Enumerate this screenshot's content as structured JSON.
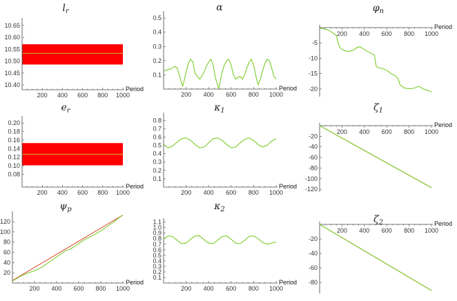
{
  "colors": {
    "series": "#7acc29",
    "band": "#ff0000",
    "bandline": "#c8c030",
    "trend": "#e0442c"
  },
  "chart_data": [
    {
      "type": "band",
      "title_base": "l",
      "title_sub": "r",
      "xlabel": "Period",
      "xlim": [
        0,
        1000
      ],
      "xticks": [
        200,
        400,
        600,
        800,
        1000
      ],
      "ylim": [
        10.38,
        10.67
      ],
      "yticks": [
        10.4,
        10.45,
        10.5,
        10.55,
        10.6,
        10.65
      ],
      "ytick_labels": [
        "10.40",
        "10.45",
        "10.50",
        "10.55",
        "10.60",
        "10.65"
      ],
      "x_axis_at": 10.38,
      "band": {
        "x": [
          0,
          1000
        ],
        "ymin": 10.486,
        "ymax": 10.571,
        "center": 10.533
      }
    },
    {
      "type": "line",
      "title_base": "α",
      "title_sub": "",
      "xlabel": "Period",
      "xlim": [
        0,
        1000
      ],
      "xticks": [
        200,
        400,
        600,
        800,
        1000
      ],
      "ylim": [
        0,
        0.53
      ],
      "yticks": [
        0.1,
        0.2,
        0.3,
        0.4,
        0.5
      ],
      "ytick_labels": [
        "0.1",
        "0.2",
        "0.3",
        "0.4",
        "0.5"
      ],
      "x_axis_at": 0,
      "series": [
        {
          "x": [
            0,
            20,
            40,
            60,
            80,
            100,
            120,
            140,
            160,
            170,
            180,
            200,
            220,
            240,
            260,
            280,
            300,
            320,
            340,
            360,
            380,
            400,
            420,
            440,
            460,
            480,
            490,
            500,
            520,
            540,
            560,
            580,
            600,
            620,
            640,
            660,
            680,
            690,
            700,
            720,
            740,
            760,
            780,
            800,
            820,
            840,
            860,
            880,
            900,
            920,
            940,
            960,
            980,
            1000
          ],
          "y": [
            0.13,
            0.13,
            0.14,
            0.14,
            0.15,
            0.16,
            0.15,
            0.1,
            0.04,
            0.02,
            0.05,
            0.12,
            0.18,
            0.21,
            0.19,
            0.11,
            0.09,
            0.07,
            0.09,
            0.12,
            0.16,
            0.19,
            0.21,
            0.17,
            0.08,
            0.03,
            0.005,
            0.04,
            0.12,
            0.17,
            0.2,
            0.21,
            0.17,
            0.1,
            0.07,
            0.08,
            0.09,
            0.08,
            0.07,
            0.1,
            0.15,
            0.19,
            0.21,
            0.17,
            0.09,
            0.03,
            0.07,
            0.13,
            0.18,
            0.21,
            0.2,
            0.15,
            0.09,
            0.07
          ]
        }
      ]
    },
    {
      "type": "line",
      "title_base": "φ",
      "title_sub": "n",
      "xlabel": "Period",
      "xlim": [
        0,
        1000
      ],
      "xticks": [
        200,
        400,
        600,
        800,
        1000
      ],
      "ylim": [
        -22.5,
        0
      ],
      "yticks": [
        -5,
        -10,
        -15,
        -20
      ],
      "ytick_labels": [
        "-5",
        "-10",
        "-15",
        "-20"
      ],
      "x_axis_at": 0,
      "series": [
        {
          "x": [
            0,
            40,
            80,
            120,
            150,
            165,
            180,
            220,
            260,
            300,
            330,
            360,
            390,
            420,
            460,
            490,
            505,
            520,
            560,
            600,
            640,
            680,
            700,
            720,
            760,
            800,
            840,
            880,
            900,
            920,
            960,
            1000
          ],
          "y": [
            -0.2,
            -0.4,
            -0.8,
            -1.8,
            -2.6,
            -5.0,
            -6.5,
            -7.5,
            -7.8,
            -7.4,
            -6.6,
            -6.2,
            -6.9,
            -7.6,
            -8.4,
            -9.0,
            -12.5,
            -13.0,
            -13.3,
            -13.9,
            -15.0,
            -15.8,
            -16.6,
            -18.7,
            -19.7,
            -19.9,
            -19.8,
            -19.2,
            -19.3,
            -19.9,
            -20.4,
            -20.9
          ]
        }
      ]
    },
    {
      "type": "band",
      "title_base": "e",
      "title_sub": "r",
      "xlabel": "Period",
      "xlim": [
        0,
        1000
      ],
      "xticks": [
        200,
        400,
        600,
        800,
        1000
      ],
      "ylim": [
        0.05,
        0.21
      ],
      "yticks": [
        0.08,
        0.1,
        0.12,
        0.14,
        0.16,
        0.18,
        0.2
      ],
      "ytick_labels": [
        "0.08",
        "0.10",
        "0.12",
        "0.14",
        "0.16",
        "0.18",
        "0.20"
      ],
      "x_axis_at": 0.05,
      "band": {
        "x": [
          0,
          1000
        ],
        "ymin": 0.101,
        "ymax": 0.153,
        "center": 0.127
      }
    },
    {
      "type": "line",
      "title_base": "κ",
      "title_sub": "1",
      "xlabel": "Period",
      "xlim": [
        0,
        1000
      ],
      "xticks": [
        200,
        400,
        600,
        800,
        1000
      ],
      "ylim": [
        0,
        0.86
      ],
      "yticks": [
        0.1,
        0.2,
        0.3,
        0.4,
        0.5,
        0.6,
        0.7,
        0.8
      ],
      "ytick_labels": [
        "0.1",
        "0.2",
        "0.3",
        "0.4",
        "0.5",
        "0.6",
        "0.7",
        "0.8"
      ],
      "x_axis_at": 0,
      "series": [
        {
          "x": [
            0,
            40,
            80,
            120,
            160,
            200,
            240,
            280,
            320,
            360,
            400,
            440,
            480,
            520,
            560,
            600,
            640,
            680,
            720,
            760,
            800,
            840,
            880,
            920,
            960,
            1000
          ],
          "y": [
            0.51,
            0.47,
            0.49,
            0.54,
            0.58,
            0.59,
            0.56,
            0.51,
            0.47,
            0.48,
            0.53,
            0.58,
            0.59,
            0.56,
            0.51,
            0.47,
            0.48,
            0.53,
            0.57,
            0.59,
            0.56,
            0.51,
            0.48,
            0.5,
            0.55,
            0.58
          ]
        }
      ]
    },
    {
      "type": "line",
      "title_base": "ζ",
      "title_sub": "1",
      "xlabel": "Period",
      "xlim": [
        0,
        1000
      ],
      "xticks": [
        200,
        400,
        600,
        800,
        1000
      ],
      "ylim": [
        -125,
        0
      ],
      "yticks": [
        -20,
        -40,
        -60,
        -80,
        -100,
        -120
      ],
      "ytick_labels": [
        "-20",
        "-40",
        "-60",
        "-80",
        "-100",
        "-120"
      ],
      "x_axis_at": 0,
      "trend": {
        "x": [
          0,
          1000
        ],
        "y": [
          0,
          -117
        ]
      },
      "series": [
        {
          "x": [
            0,
            1000
          ],
          "y": [
            0,
            -117
          ]
        }
      ]
    },
    {
      "type": "line",
      "title_base": "ψ",
      "title_sub": "p",
      "xlabel": "Period",
      "xlim": [
        0,
        1000
      ],
      "xticks": [
        200,
        400,
        600,
        800,
        1000
      ],
      "ylim": [
        0,
        135
      ],
      "yticks": [
        20,
        40,
        60,
        80,
        100,
        120
      ],
      "ytick_labels": [
        "20",
        "40",
        "60",
        "80",
        "100",
        "120"
      ],
      "x_axis_at": 0,
      "trend": {
        "x": [
          0,
          1000
        ],
        "y": [
          5,
          133
        ]
      },
      "series": [
        {
          "x": [
            0,
            40,
            80,
            120,
            160,
            200,
            240,
            280,
            320,
            360,
            400,
            440,
            480,
            500,
            520,
            560,
            600,
            640,
            680,
            720,
            760,
            800,
            840,
            880,
            920,
            960,
            1000
          ],
          "y": [
            4,
            9,
            14,
            18,
            21,
            24,
            28,
            33,
            39,
            45,
            51,
            57,
            63,
            65,
            66,
            71,
            77,
            83,
            88,
            92,
            97,
            102,
            108,
            114,
            120,
            127,
            133
          ]
        }
      ]
    },
    {
      "type": "line",
      "title_base": "κ",
      "title_sub": "2",
      "xlabel": "Period",
      "xlim": [
        0,
        1000
      ],
      "xticks": [
        200,
        400,
        600,
        800,
        1000
      ],
      "ylim": [
        0,
        1.12
      ],
      "yticks": [
        0.1,
        0.2,
        0.3,
        0.4,
        0.5,
        0.6,
        0.7,
        0.8,
        0.9,
        1.0,
        1.1
      ],
      "ytick_labels": [
        "0.1",
        "0.2",
        "0.3",
        "0.4",
        "0.5",
        "0.6",
        "0.7",
        "0.8",
        "0.9",
        "1.0",
        "1.1"
      ],
      "x_axis_at": 0,
      "series": [
        {
          "x": [
            0,
            40,
            80,
            120,
            160,
            200,
            240,
            280,
            320,
            360,
            400,
            440,
            480,
            520,
            560,
            600,
            640,
            680,
            720,
            760,
            800,
            840,
            880,
            920,
            960,
            1000
          ],
          "y": [
            0.79,
            0.85,
            0.84,
            0.77,
            0.71,
            0.72,
            0.79,
            0.85,
            0.85,
            0.78,
            0.72,
            0.71,
            0.77,
            0.84,
            0.85,
            0.79,
            0.72,
            0.71,
            0.77,
            0.84,
            0.85,
            0.8,
            0.73,
            0.7,
            0.72,
            0.74
          ]
        }
      ]
    },
    {
      "type": "line",
      "title_base": "ζ",
      "title_sub": "2",
      "xlabel": "Period",
      "xlim": [
        0,
        1000
      ],
      "xticks": [
        200,
        400,
        600,
        800,
        1000
      ],
      "ylim": [
        -95,
        0
      ],
      "yticks": [
        -20,
        -40,
        -60,
        -80
      ],
      "ytick_labels": [
        "-20",
        "-40",
        "-60",
        "-80"
      ],
      "x_axis_at": 0,
      "trend": {
        "x": [
          0,
          1000
        ],
        "y": [
          0,
          -91
        ]
      },
      "series": [
        {
          "x": [
            0,
            1000
          ],
          "y": [
            0,
            -91
          ]
        }
      ]
    }
  ]
}
